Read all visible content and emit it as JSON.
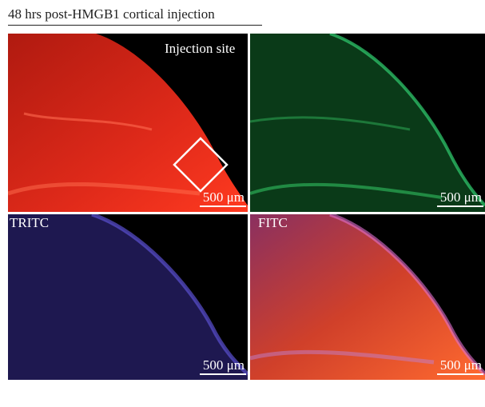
{
  "header": {
    "title": "48 hrs post-HMGB1 cortical injection"
  },
  "panels": [
    {
      "label": "Injection site",
      "scale_bar": "500 μm"
    },
    {
      "scale_bar": "500 μm"
    },
    {
      "label": "TRITC",
      "scale_bar": "500 μm"
    },
    {
      "label": "FITC",
      "scale_bar": "500 μm"
    }
  ]
}
